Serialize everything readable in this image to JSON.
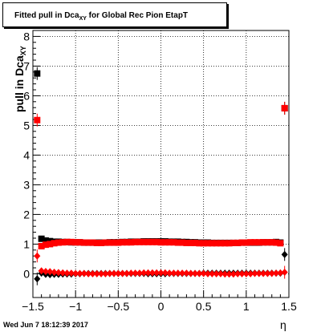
{
  "title": {
    "prefix": "Fitted pull in Dca",
    "sub": "XY",
    "suffix": " for Global Rec Pion EtapT"
  },
  "footer": {
    "datestamp": "Wed Jun  7 18:12:39 2017"
  },
  "colors": {
    "mean_series": "#000000",
    "sigma_series": "#ff0000",
    "axis": "#000000",
    "grid": "#000000"
  },
  "chart_data": {
    "type": "scatter",
    "title": "Fitted pull in DcaXY for Global Rec Pion EtapT",
    "xlabel": "η",
    "ylabel": "pull in DcaXY",
    "xlim": [
      -1.5,
      1.5
    ],
    "ylim": [
      -0.8,
      8.2
    ],
    "grid": true,
    "x_ticks": [
      -1.5,
      -1,
      -0.5,
      0,
      0.5,
      1,
      1.5
    ],
    "x_tick_labels": [
      "−1.5",
      "−1",
      "−0.5",
      "0",
      "0.5",
      "1",
      "1.5"
    ],
    "y_ticks": [
      0,
      1,
      2,
      3,
      4,
      5,
      6,
      7,
      8
    ],
    "y_tick_labels": [
      "0",
      "1",
      "2",
      "3",
      "4",
      "5",
      "6",
      "7",
      "8"
    ],
    "series": [
      {
        "marker": "square",
        "color": "#000000",
        "x": [
          -1.45,
          -1.4,
          -1.35,
          -1.3,
          -1.25,
          -1.2,
          -1.15,
          -1.1,
          -1.05,
          -1,
          -0.95,
          -0.9,
          -0.85,
          -0.8,
          -0.75,
          -0.7,
          -0.65,
          -0.6,
          -0.55,
          -0.5,
          -0.45,
          -0.4,
          -0.35,
          -0.3,
          -0.25,
          -0.2,
          -0.15,
          -0.1,
          -0.05,
          0,
          0.05,
          0.1,
          0.15,
          0.2,
          0.25,
          0.3,
          0.35,
          0.4,
          0.45,
          0.5,
          0.55,
          0.6,
          0.65,
          0.7,
          0.75,
          0.8,
          0.85,
          0.9,
          0.95,
          1,
          1.05,
          1.1,
          1.15,
          1.2,
          1.25,
          1.3,
          1.35,
          1.4,
          1.45
        ],
        "y": [
          6.75,
          1.18,
          1.12,
          1.1,
          1.08,
          1.08,
          1.07,
          1.07,
          1.06,
          1.06,
          1.06,
          1.05,
          1.05,
          1.05,
          1.05,
          1.05,
          1.05,
          1.06,
          1.06,
          1.06,
          1.07,
          1.07,
          1.08,
          1.08,
          1.08,
          1.09,
          1.09,
          1.09,
          1.09,
          1.09,
          1.09,
          1.08,
          1.08,
          1.08,
          1.07,
          1.07,
          1.06,
          1.06,
          1.05,
          1.05,
          1.05,
          1.04,
          1.04,
          1.04,
          1.04,
          1.04,
          1.04,
          1.04,
          1.05,
          1.05,
          1.05,
          1.05,
          1.05,
          1.06,
          1.06,
          1.06,
          1.07,
          1.05,
          5.58
        ]
      },
      {
        "marker": "square",
        "color": "#ff0000",
        "x": [
          -1.45,
          -1.4,
          -1.35,
          -1.3,
          -1.25,
          -1.2,
          -1.15,
          -1.1,
          -1.05,
          -1,
          -0.95,
          -0.9,
          -0.85,
          -0.8,
          -0.75,
          -0.7,
          -0.65,
          -0.6,
          -0.55,
          -0.5,
          -0.45,
          -0.4,
          -0.35,
          -0.3,
          -0.25,
          -0.2,
          -0.15,
          -0.1,
          -0.05,
          0,
          0.05,
          0.1,
          0.15,
          0.2,
          0.25,
          0.3,
          0.35,
          0.4,
          0.45,
          0.5,
          0.55,
          0.6,
          0.65,
          0.7,
          0.75,
          0.8,
          0.85,
          0.9,
          0.95,
          1,
          1.05,
          1.1,
          1.15,
          1.2,
          1.25,
          1.3,
          1.35,
          1.4,
          1.45
        ],
        "y": [
          5.18,
          0.93,
          0.98,
          1.0,
          1.03,
          1.05,
          1.06,
          1.07,
          1.07,
          1.06,
          1.06,
          1.05,
          1.05,
          1.05,
          1.04,
          1.04,
          1.05,
          1.05,
          1.05,
          1.05,
          1.06,
          1.06,
          1.06,
          1.07,
          1.07,
          1.07,
          1.07,
          1.07,
          1.07,
          1.06,
          1.06,
          1.06,
          1.06,
          1.05,
          1.05,
          1.04,
          1.04,
          1.04,
          1.03,
          1.03,
          1.03,
          1.03,
          1.03,
          1.03,
          1.03,
          1.03,
          1.04,
          1.04,
          1.05,
          1.05,
          1.06,
          1.06,
          1.06,
          1.06,
          1.06,
          1.06,
          1.05,
          1.03,
          5.58
        ]
      },
      {
        "marker": "diamond",
        "color": "#000000",
        "x": [
          -1.45,
          -1.4,
          -1.35,
          -1.3,
          -1.25,
          -1.2,
          -1.15,
          -1.1,
          -1.05,
          -1,
          -0.95,
          -0.9,
          -0.85,
          -0.8,
          -0.75,
          -0.7,
          -0.65,
          -0.6,
          -0.55,
          -0.5,
          -0.45,
          -0.4,
          -0.35,
          -0.3,
          -0.25,
          -0.2,
          -0.15,
          -0.1,
          -0.05,
          0,
          0.05,
          0.1,
          0.15,
          0.2,
          0.25,
          0.3,
          0.35,
          0.4,
          0.45,
          0.5,
          0.55,
          0.6,
          0.65,
          0.7,
          0.75,
          0.8,
          0.85,
          0.9,
          0.95,
          1,
          1.05,
          1.1,
          1.15,
          1.2,
          1.25,
          1.3,
          1.35,
          1.4,
          1.45
        ],
        "y": [
          -0.17,
          0.02,
          -0.02,
          -0.03,
          -0.02,
          -0.02,
          -0.01,
          -0.01,
          -0.01,
          0.0,
          0.0,
          0.01,
          0.01,
          0.01,
          0.01,
          0.01,
          0.01,
          0.01,
          0.01,
          0.01,
          0.01,
          0.01,
          0.01,
          0.01,
          0.01,
          0.01,
          0.0,
          0.0,
          0.0,
          0.0,
          0.0,
          0.01,
          0.01,
          0.01,
          0.01,
          0.01,
          0.01,
          0.01,
          0.01,
          0.02,
          0.02,
          0.02,
          0.02,
          0.02,
          0.02,
          0.02,
          0.02,
          0.02,
          0.02,
          0.02,
          0.02,
          0.02,
          0.02,
          0.02,
          0.02,
          0.02,
          0.02,
          0.02,
          0.65
        ]
      },
      {
        "marker": "diamond",
        "color": "#ff0000",
        "x": [
          -1.45,
          -1.4,
          -1.35,
          -1.3,
          -1.25,
          -1.2,
          -1.15,
          -1.1,
          -1.05,
          -1,
          -0.95,
          -0.9,
          -0.85,
          -0.8,
          -0.75,
          -0.7,
          -0.65,
          -0.6,
          -0.55,
          -0.5,
          -0.45,
          -0.4,
          -0.35,
          -0.3,
          -0.25,
          -0.2,
          -0.15,
          -0.1,
          -0.05,
          0,
          0.05,
          0.1,
          0.15,
          0.2,
          0.25,
          0.3,
          0.35,
          0.4,
          0.45,
          0.5,
          0.55,
          0.6,
          0.65,
          0.7,
          0.75,
          0.8,
          0.85,
          0.9,
          0.95,
          1,
          1.05,
          1.1,
          1.15,
          1.2,
          1.25,
          1.3,
          1.35,
          1.4,
          1.45
        ],
        "y": [
          0.6,
          0.1,
          0.08,
          0.07,
          0.05,
          0.04,
          0.03,
          0.02,
          0.02,
          0.01,
          0.01,
          0.01,
          0.0,
          0.0,
          0.0,
          0.0,
          0.0,
          0.01,
          0.01,
          0.01,
          0.01,
          0.01,
          0.02,
          0.02,
          0.02,
          0.03,
          0.03,
          0.03,
          0.03,
          0.03,
          0.03,
          0.02,
          0.02,
          0.02,
          0.02,
          0.02,
          0.01,
          0.01,
          0.01,
          0.01,
          0.0,
          0.0,
          0.0,
          0.0,
          -0.01,
          -0.01,
          -0.01,
          0.0,
          0.0,
          0.0,
          0.0,
          0.01,
          0.01,
          0.01,
          0.01,
          0.01,
          0.02,
          0.03,
          0.05
        ]
      }
    ]
  }
}
